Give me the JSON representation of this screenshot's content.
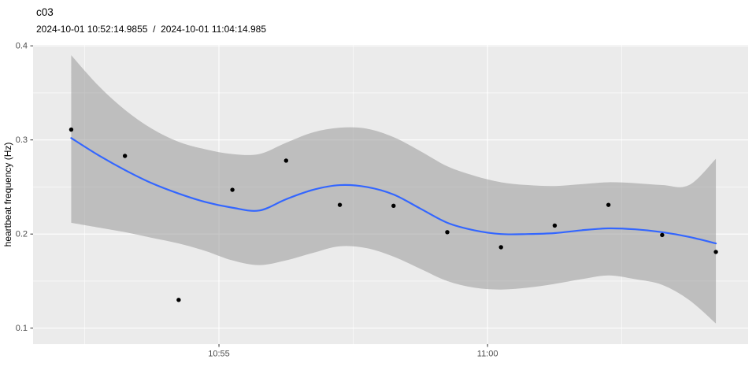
{
  "chart_data": {
    "type": "scatter",
    "title": "c03",
    "subtitle": "2024-10-01 10:52:14.9855  /  2024-10-01 11:04:14.985",
    "xlabel": "",
    "ylabel": "heartbeat frequency (Hz)",
    "x_unit": "minutes since 10:52:15",
    "xlim": [
      -0.71,
      12.6
    ],
    "ylim": [
      0.083,
      0.401
    ],
    "grid": true,
    "legend": "none",
    "x_tick_values": [
      2.75,
      7.75
    ],
    "x_tick_labels": [
      "10:55",
      "11:00"
    ],
    "x_minor_values": [
      0.25,
      5.25,
      10.25
    ],
    "y_tick_values": [
      0.1,
      0.2,
      0.3,
      0.4
    ],
    "y_tick_labels": [
      "0.1",
      "0.2",
      "0.3",
      "0.4"
    ],
    "y_minor_values": [
      0.15,
      0.25,
      0.35
    ],
    "points": {
      "times": [
        "10:52:15",
        "10:53:15",
        "10:54:15",
        "10:55:15",
        "10:56:15",
        "10:57:15",
        "10:58:15",
        "10:59:15",
        "11:00:15",
        "11:01:15",
        "11:02:15",
        "11:03:15",
        "11:04:15"
      ],
      "x": [
        0,
        1,
        2,
        3,
        4,
        5,
        6,
        7,
        8,
        9,
        10,
        11,
        12
      ],
      "y": [
        0.311,
        0.283,
        0.13,
        0.247,
        0.278,
        0.231,
        0.23,
        0.202,
        0.186,
        0.209,
        0.231,
        0.199,
        0.181
      ]
    },
    "smooth_line": {
      "x": [
        0,
        0.5,
        1,
        1.5,
        2,
        2.5,
        3,
        3.5,
        4,
        4.5,
        5,
        5.5,
        6,
        6.5,
        7,
        7.5,
        8,
        8.5,
        9,
        9.5,
        10,
        10.5,
        11,
        11.5,
        12
      ],
      "y": [
        0.302,
        0.284,
        0.268,
        0.254,
        0.243,
        0.234,
        0.228,
        0.225,
        0.237,
        0.247,
        0.252,
        0.25,
        0.242,
        0.227,
        0.212,
        0.204,
        0.2,
        0.2,
        0.201,
        0.204,
        0.206,
        0.205,
        0.202,
        0.197,
        0.19
      ]
    },
    "confidence_band": {
      "x": [
        0,
        0.5,
        1,
        1.5,
        2,
        2.5,
        3,
        3.5,
        4,
        4.5,
        5,
        5.5,
        6,
        6.5,
        7,
        7.5,
        8,
        8.5,
        9,
        9.5,
        10,
        10.5,
        11,
        11.5,
        12
      ],
      "upper": [
        0.39,
        0.358,
        0.332,
        0.312,
        0.298,
        0.29,
        0.285,
        0.285,
        0.297,
        0.308,
        0.313,
        0.312,
        0.303,
        0.288,
        0.272,
        0.262,
        0.255,
        0.252,
        0.251,
        0.253,
        0.255,
        0.254,
        0.252,
        0.252,
        0.28
      ],
      "lower": [
        0.212,
        0.207,
        0.202,
        0.196,
        0.19,
        0.182,
        0.172,
        0.167,
        0.172,
        0.18,
        0.187,
        0.185,
        0.176,
        0.163,
        0.15,
        0.143,
        0.141,
        0.143,
        0.147,
        0.152,
        0.156,
        0.152,
        0.146,
        0.13,
        0.105
      ]
    },
    "colors": {
      "panel_background": "#EBEBEB",
      "gridline": "#FFFFFF",
      "band": "#999999",
      "band_opacity": 0.55,
      "smooth_line": "#3366FF",
      "point": "#000000",
      "tick_label": "#4D4D4D",
      "tick_mark": "#333333"
    }
  }
}
